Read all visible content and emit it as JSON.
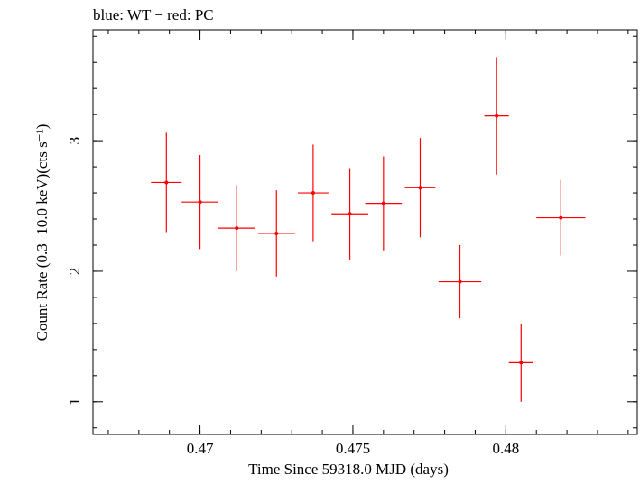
{
  "chart_data": {
    "type": "scatter",
    "title": "blue: WT − red: PC",
    "xlabel": "Time Since 59318.0 MJD (days)",
    "ylabel": "Count Rate (0.3−10.0 keV)(cts s⁻¹)",
    "xlim": [
      0.4665,
      0.4843
    ],
    "ylim": [
      0.75,
      3.85
    ],
    "x_ticks": [
      0.47,
      0.475,
      0.48
    ],
    "x_tick_labels": [
      "0.47",
      "0.475",
      "0.48"
    ],
    "y_ticks": [
      1,
      2,
      3
    ],
    "y_tick_labels": [
      "1",
      "2",
      "3"
    ],
    "x_minor_step": 0.001,
    "y_minor_step": 0.2,
    "grid": false,
    "series": [
      {
        "name": "PC",
        "color": "#ff0000",
        "x": [
          0.4689,
          0.47,
          0.4712,
          0.4725,
          0.4737,
          0.4749,
          0.476,
          0.4772,
          0.4785,
          0.4797,
          0.4805,
          0.4818
        ],
        "xerr": [
          0.0005,
          0.0006,
          0.0006,
          0.0006,
          0.0005,
          0.0006,
          0.0006,
          0.0005,
          0.0007,
          0.0004,
          0.0004,
          0.0008
        ],
        "y": [
          2.68,
          2.53,
          2.33,
          2.29,
          2.6,
          2.44,
          2.52,
          2.64,
          1.92,
          3.19,
          1.3,
          2.41
        ],
        "yerr": [
          0.38,
          0.36,
          0.33,
          0.33,
          0.37,
          0.35,
          0.36,
          0.38,
          0.28,
          0.45,
          0.3,
          0.29
        ]
      }
    ]
  }
}
